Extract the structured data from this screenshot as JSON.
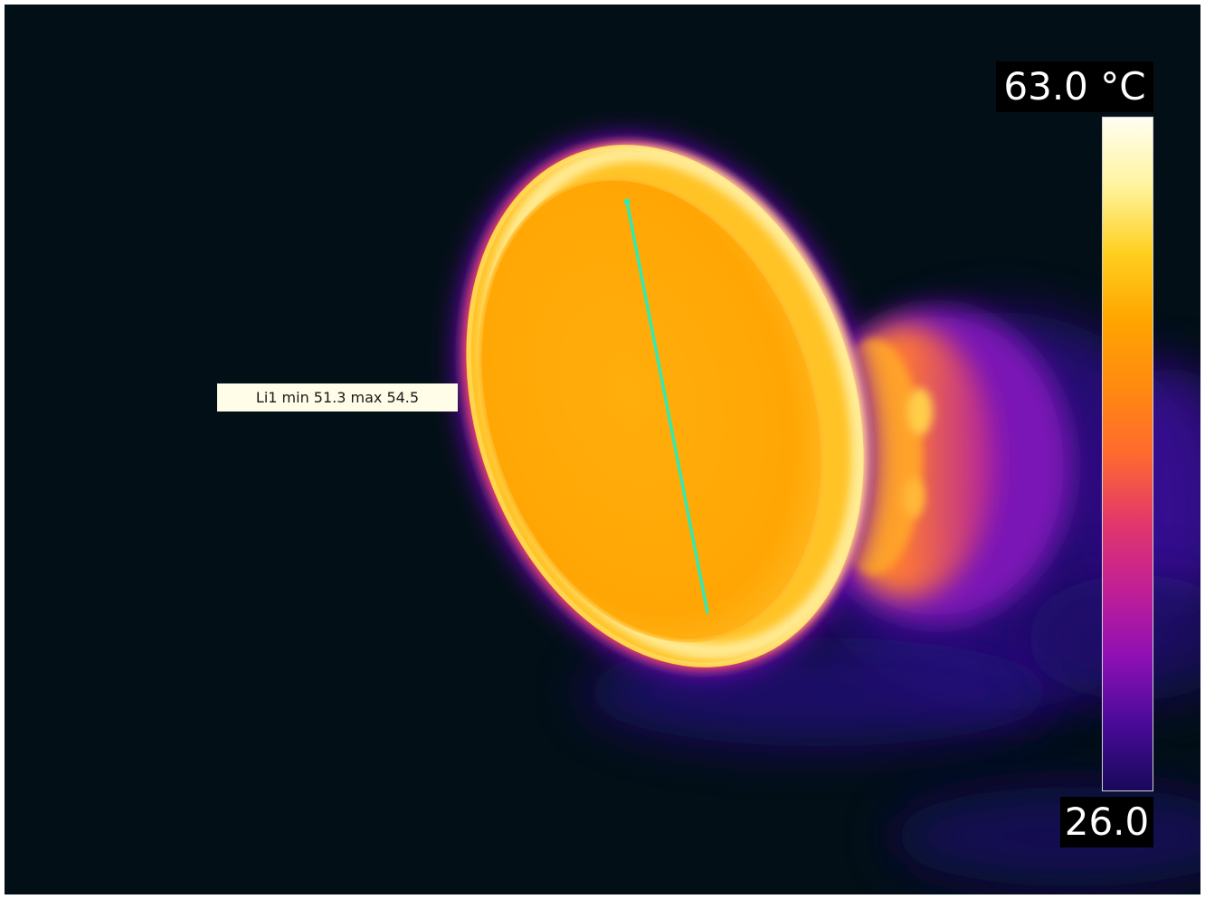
{
  "measurement": {
    "label": "Li1 min 51.3 max 54.5"
  },
  "scale": {
    "max_label": "63.0 °C",
    "min_label": "26.0",
    "palette": [
      "#fffef2",
      "#fff4a0",
      "#ffd020",
      "#ffa500",
      "#ff8a10",
      "#ff6a2e",
      "#e2386a",
      "#c21f95",
      "#8f10b4",
      "#4a0a9a",
      "#17095a"
    ]
  },
  "colors": {
    "background": "#030f16",
    "line_marker": "#35e8b0",
    "label_background": "#fffce8"
  }
}
